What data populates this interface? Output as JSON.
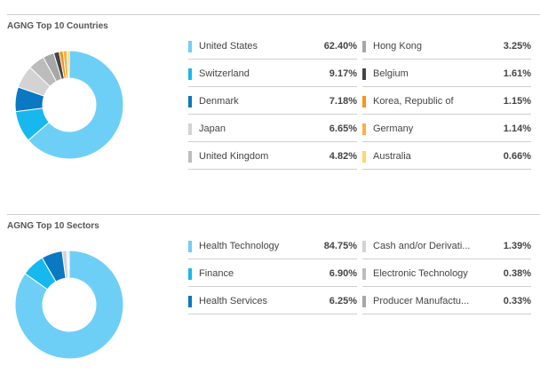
{
  "chart_data": [
    {
      "type": "pie",
      "title": "AGNG Top 10 Countries",
      "categories": [
        "United States",
        "Switzerland",
        "Denmark",
        "Japan",
        "United Kingdom",
        "Hong Kong",
        "Belgium",
        "Korea, Republic of",
        "Germany",
        "Australia"
      ],
      "values": [
        62.4,
        9.17,
        7.18,
        6.65,
        4.82,
        3.25,
        1.61,
        1.15,
        1.14,
        0.66
      ],
      "labels": [
        "62.40%",
        "9.17%",
        "7.18%",
        "6.65%",
        "4.82%",
        "3.25%",
        "1.61%",
        "1.15%",
        "1.14%",
        "0.66%"
      ],
      "colors": [
        "#6ecff6",
        "#17b8ee",
        "#0a78c2",
        "#d3d3d3",
        "#bcbcbc",
        "#a7a7a7",
        "#444444",
        "#f7941d",
        "#fbb040",
        "#fdd966"
      ],
      "legend": "right"
    },
    {
      "type": "pie",
      "title": "AGNG Top 10 Sectors",
      "categories": [
        "Health Technology",
        "Finance",
        "Health Services",
        "Cash and/or Derivati...",
        "Electronic Technology",
        "Producer Manufactu..."
      ],
      "values": [
        84.75,
        6.9,
        6.25,
        1.39,
        0.38,
        0.33
      ],
      "labels": [
        "84.75%",
        "6.90%",
        "6.25%",
        "1.39%",
        "0.38%",
        "0.33%"
      ],
      "colors": [
        "#6ecff6",
        "#17b8ee",
        "#0a78c2",
        "#d3d3d3",
        "#bcbcbc",
        "#a7a7a7"
      ],
      "legend": "right"
    }
  ]
}
